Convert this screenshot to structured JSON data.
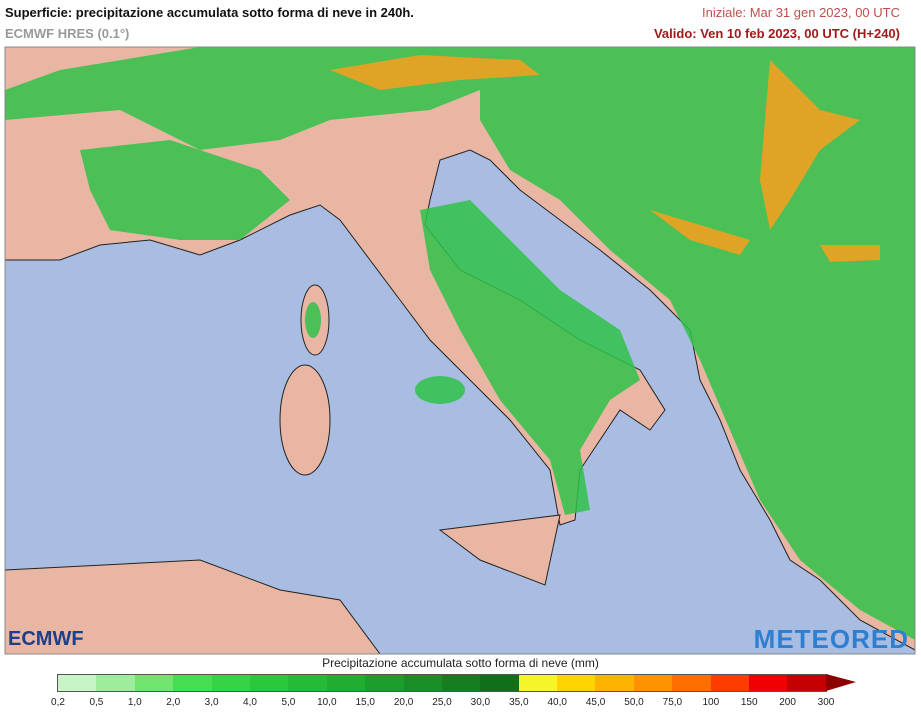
{
  "header": {
    "title": "Superficie: precipitazione accumulata sotto forma di neve in 240h.",
    "subtitle": "ECMWF HRES (0.1°)",
    "init": "Iniziale: Mar 31 gen 2023, 00 UTC",
    "valid": "Valido: Ven 10 feb 2023, 00 UTC (H+240)"
  },
  "logos": {
    "left": "ECMWF",
    "right": "METEORED"
  },
  "legend": {
    "title": "Precipitazione accumulata sotto forma di neve (mm)",
    "labels": [
      "0,2",
      "0,5",
      "1,0",
      "2,0",
      "3,0",
      "4,0",
      "5,0",
      "10,0",
      "15,0",
      "20,0",
      "25,0",
      "30,0",
      "35,0",
      "40,0",
      "45,0",
      "50,0",
      "75,0",
      "100",
      "150",
      "200",
      "300"
    ],
    "colors": [
      "#c8f5c8",
      "#9cee9c",
      "#6ee66e",
      "#44de50",
      "#34d444",
      "#2cc83c",
      "#26bb36",
      "#20ad30",
      "#1c9e2b",
      "#188f26",
      "#147f21",
      "#0f6f1b",
      "#f5f52a",
      "#ffd400",
      "#ffb300",
      "#ff9200",
      "#ff6f00",
      "#ff3c00",
      "#f00000",
      "#c40000",
      "#8c0000"
    ]
  }
}
